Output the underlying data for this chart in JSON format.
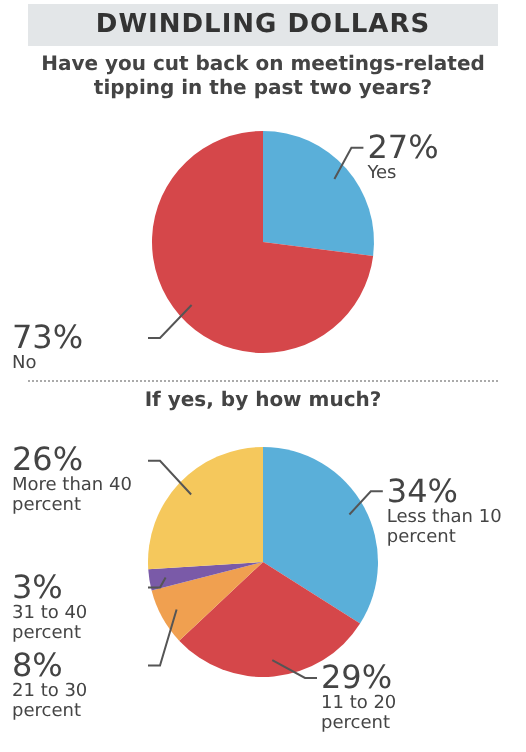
{
  "chart_data": [
    {
      "type": "pie",
      "title": "DWINDLING DOLLARS",
      "subtitle": "Have you cut back on meetings-related tipping in the past two years?",
      "categories": [
        "Yes",
        "No"
      ],
      "values": [
        27,
        73
      ],
      "value_labels": [
        "27%",
        "73%"
      ],
      "colors": [
        "#5aafd9",
        "#d5474a"
      ]
    },
    {
      "type": "pie",
      "title": "If yes, by how much?",
      "categories": [
        "Less than 10 percent",
        "11 to 20 percent",
        "21 to 30 percent",
        "31 to 40 percent",
        "More than 40 percent"
      ],
      "values": [
        34,
        29,
        8,
        3,
        26
      ],
      "value_labels": [
        "34%",
        "29%",
        "8%",
        "3%",
        "26%"
      ],
      "colors": [
        "#5aafd9",
        "#d5474a",
        "#f0a050",
        "#7a5aa8",
        "#f5c85c"
      ]
    }
  ]
}
